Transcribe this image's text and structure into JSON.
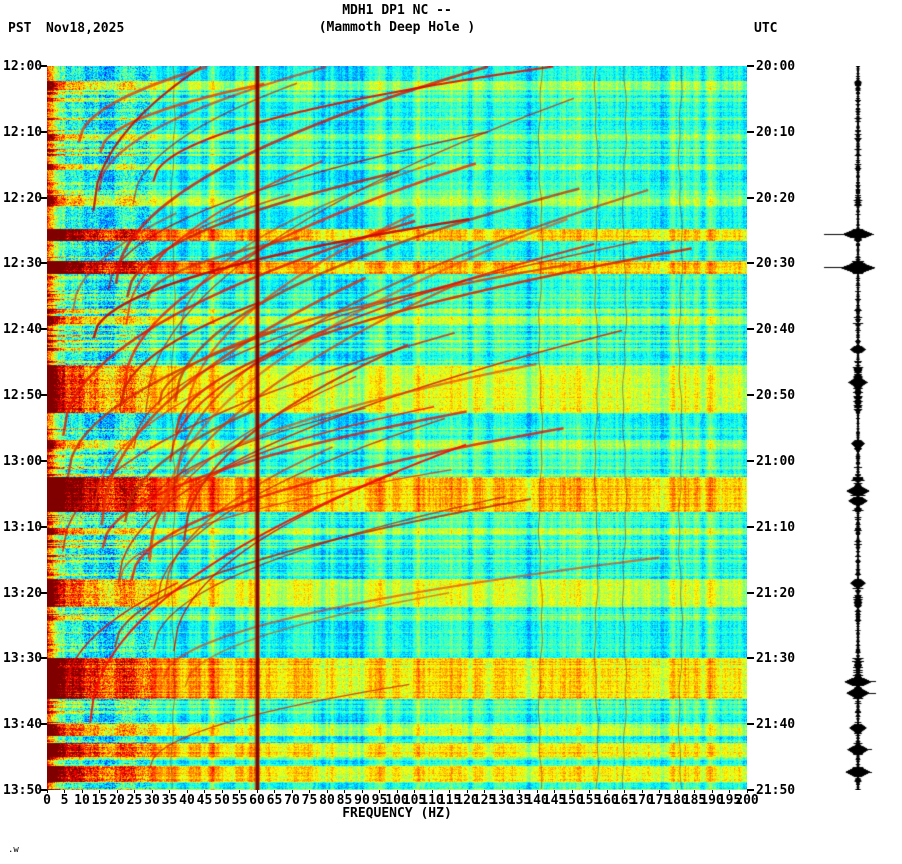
{
  "header": {
    "station": "MDH1 DP1 NC --",
    "location": "(Mammoth Deep Hole )",
    "left_timezone": "PST",
    "date": "Nov18,2025",
    "right_timezone": "UTC"
  },
  "footer_mark": ".w",
  "chart_data": {
    "type": "heatmap",
    "title": "MDH1 DP1 NC -- (Mammoth Deep Hole ) spectrogram",
    "xlabel": "FREQUENCY (HZ)",
    "x_range": [
      0,
      200
    ],
    "x_tick_labels": [
      "0",
      "5",
      "10",
      "15",
      "20",
      "25",
      "30",
      "35",
      "40",
      "45",
      "50",
      "55",
      "60",
      "65",
      "70",
      "75",
      "80",
      "85",
      "90",
      "95",
      "100",
      "105",
      "110",
      "115",
      "120",
      "125",
      "130",
      "135",
      "140",
      "145",
      "150",
      "155",
      "160",
      "165",
      "170",
      "175",
      "180",
      "185",
      "190",
      "195",
      "200"
    ],
    "duration_min": 110,
    "time_tick_interval_min": 10,
    "left_time_labels": [
      "12:00",
      "12:10",
      "12:20",
      "12:30",
      "12:40",
      "12:50",
      "13:00",
      "13:10",
      "13:20",
      "13:30",
      "13:40",
      "13:50"
    ],
    "right_time_labels": [
      "20:00",
      "20:10",
      "20:20",
      "20:30",
      "20:40",
      "20:50",
      "21:00",
      "21:10",
      "21:20",
      "21:30",
      "21:40",
      "21:50"
    ],
    "colormap": "jet",
    "background_color_hint": "#35d8d8",
    "mains_line_color_hint": "#7a0000",
    "features": {
      "mains_line_hz": 60,
      "faint_vertical_lines_hz": [
        36,
        141,
        157,
        165,
        181
      ],
      "low_freq_energy_max_hz": 8,
      "gliding_arc_count": 52,
      "events": [
        {
          "start_min": 2.3,
          "end_min": 3.4,
          "strength": 0.5
        },
        {
          "start_min": 10.4,
          "end_min": 11.2,
          "strength": 0.4
        },
        {
          "start_min": 15.0,
          "end_min": 15.6,
          "strength": 0.35
        },
        {
          "start_min": 19.8,
          "end_min": 21.0,
          "strength": 0.45
        },
        {
          "start_min": 24.8,
          "end_min": 26.3,
          "strength": 0.9
        },
        {
          "start_min": 29.7,
          "end_min": 31.3,
          "strength": 0.95
        },
        {
          "start_min": 38.0,
          "end_min": 39.0,
          "strength": 0.5
        },
        {
          "start_min": 45.5,
          "end_min": 52.5,
          "strength": 0.65
        },
        {
          "start_min": 57.0,
          "end_min": 58.0,
          "strength": 0.45
        },
        {
          "start_min": 62.5,
          "end_min": 67.5,
          "strength": 0.95
        },
        {
          "start_min": 70.2,
          "end_min": 71.0,
          "strength": 0.5
        },
        {
          "start_min": 78.0,
          "end_min": 82.0,
          "strength": 0.6
        },
        {
          "start_min": 90.0,
          "end_min": 96.0,
          "strength": 0.85
        },
        {
          "start_min": 100.0,
          "end_min": 101.5,
          "strength": 0.6
        },
        {
          "start_min": 103.0,
          "end_min": 104.8,
          "strength": 0.75
        },
        {
          "start_min": 106.5,
          "end_min": 108.5,
          "strength": 0.8
        }
      ],
      "trace_spikes": [
        {
          "min": 25.5,
          "amp": 16,
          "line_left": 34,
          "line_right": 16
        },
        {
          "min": 30.6,
          "amp": 18,
          "line_left": 34,
          "line_right": 16
        },
        {
          "min": 43.0,
          "amp": 8
        },
        {
          "min": 48.0,
          "amp": 10
        },
        {
          "min": 57.3,
          "amp": 7
        },
        {
          "min": 64.5,
          "amp": 12
        },
        {
          "min": 66.0,
          "amp": 10
        },
        {
          "min": 78.5,
          "amp": 8
        },
        {
          "min": 93.5,
          "amp": 14,
          "line_right": 18
        },
        {
          "min": 95.2,
          "amp": 12,
          "line_right": 18
        },
        {
          "min": 100.5,
          "amp": 9
        },
        {
          "min": 103.8,
          "amp": 11,
          "line_right": 14
        },
        {
          "min": 107.2,
          "amp": 13,
          "line_right": 14
        }
      ]
    }
  }
}
